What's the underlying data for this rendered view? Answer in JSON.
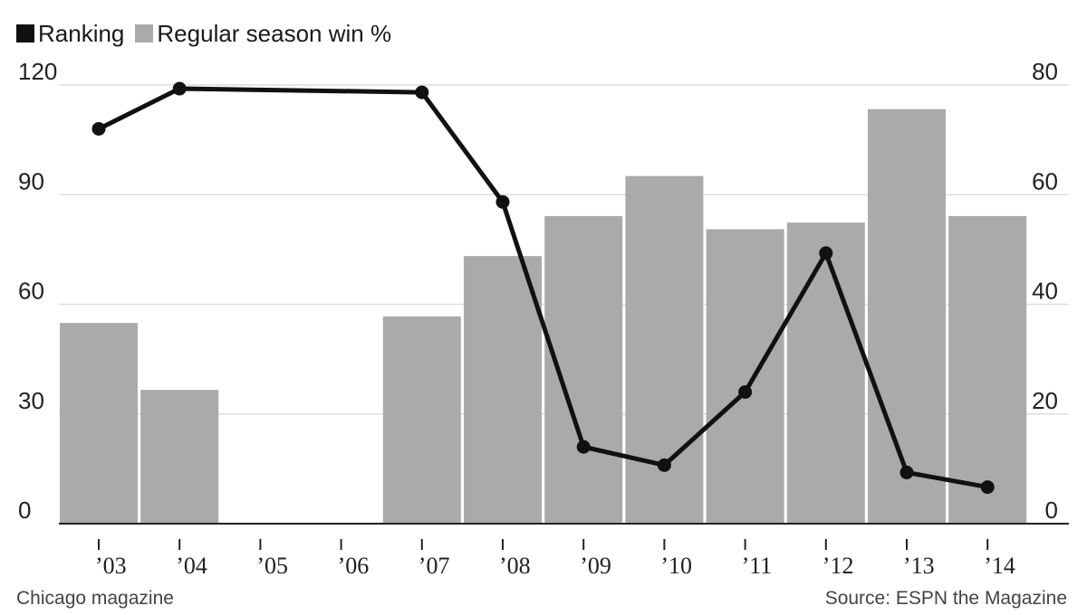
{
  "legend": [
    {
      "label": "Ranking",
      "color": "#111111"
    },
    {
      "label": "Regular season win %",
      "color": "#aaaaaa"
    }
  ],
  "footer": {
    "credit": "Chicago magazine",
    "source": "Source: ESPN the Magazine"
  },
  "chart_data": {
    "type": "bar",
    "categories": [
      "’03",
      "’04",
      "’05",
      "’06",
      "’07",
      "’08",
      "’09",
      "’10",
      "’11",
      "’12",
      "’13",
      "’14"
    ],
    "series": [
      {
        "name": "Regular season win %",
        "type": "bar",
        "axis": "right",
        "color": "#aaaaaa",
        "values": [
          36.6,
          24.4,
          null,
          null,
          37.8,
          48.8,
          56.1,
          63.4,
          53.7,
          54.9,
          75.6,
          56.1
        ]
      },
      {
        "name": "Ranking",
        "type": "line",
        "axis": "left",
        "color": "#111111",
        "values": [
          108,
          119,
          null,
          null,
          118,
          88,
          21,
          16,
          36,
          74,
          14,
          10
        ]
      }
    ],
    "y_left": {
      "ticks": [
        "0",
        "30",
        "60",
        "90",
        "120"
      ],
      "min": 0,
      "max": 120
    },
    "y_right": {
      "ticks": [
        "0",
        "20",
        "40",
        "60",
        "80"
      ],
      "min": 0,
      "max": 80
    },
    "grid": true,
    "legend_position": "top-left"
  }
}
